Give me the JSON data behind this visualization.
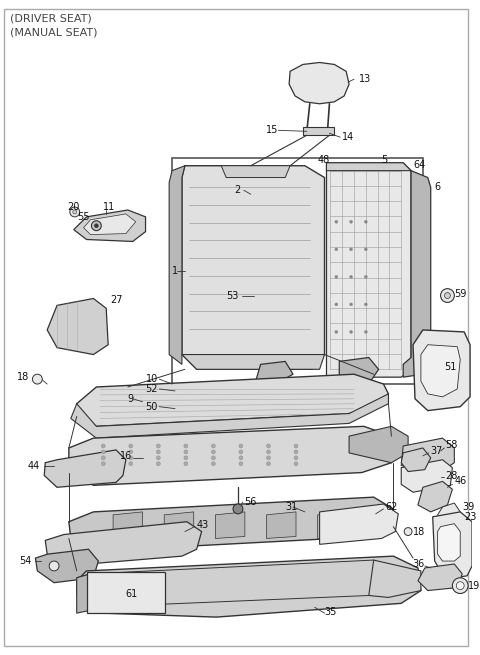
{
  "title_lines": [
    "(DRIVER SEAT)",
    "(MANUAL SEAT)"
  ],
  "bg_color": "#ffffff",
  "line_color": "#333333",
  "part_fill_light": "#e8e8e8",
  "part_fill_mid": "#d0d0d0",
  "part_fill_dark": "#b8b8b8",
  "part_fill_white": "#f5f5f5",
  "label_color": "#111111",
  "label_fontsize": 7.0,
  "title_fontsize": 8.0,
  "border_color": "#888888"
}
